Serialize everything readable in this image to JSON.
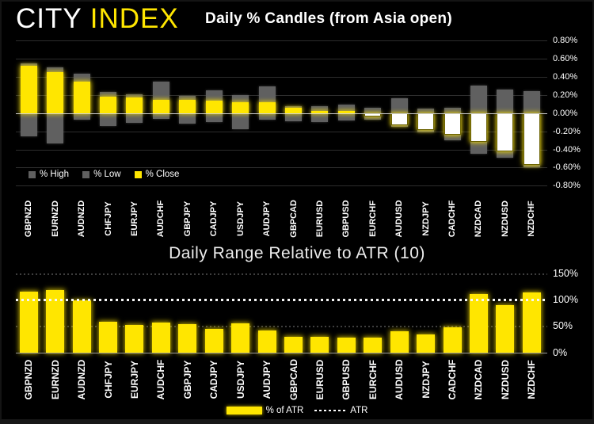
{
  "header": {
    "logo_city": "CITY",
    "logo_index": "INDEX"
  },
  "colors": {
    "background": "#000000",
    "brand_yellow": "#ffe600",
    "bar_gray": "#606060",
    "negative_close_fill": "#ffffff",
    "grid": "#2d2d2d",
    "zero_line": "#cfcfcf",
    "text": "#ffffff"
  },
  "chart_data": [
    {
      "type": "bar",
      "title": "Daily % Candles (from Asia open)",
      "categories": [
        "GBPNZD",
        "EURNZD",
        "AUDNZD",
        "CHFJPY",
        "EURJPY",
        "AUDCHF",
        "GBPJPY",
        "CADJPY",
        "USDJPY",
        "AUDJPY",
        "GBPCAD",
        "EURUSD",
        "GBPUSD",
        "EURCHF",
        "AUDUSD",
        "NZDJPY",
        "CADCHF",
        "NZDCAD",
        "NZDUSD",
        "NZDCHF"
      ],
      "series": [
        {
          "name": "% High",
          "color": "#606060",
          "values": [
            0.55,
            0.5,
            0.43,
            0.23,
            0.21,
            0.35,
            0.19,
            0.25,
            0.2,
            0.29,
            0.08,
            0.08,
            0.09,
            0.06,
            0.16,
            0.05,
            0.06,
            0.3,
            0.26,
            0.24
          ]
        },
        {
          "name": "% Low",
          "color": "#606060",
          "values": [
            -0.26,
            -0.33,
            -0.07,
            -0.14,
            -0.11,
            -0.06,
            -0.12,
            -0.1,
            -0.18,
            -0.07,
            -0.09,
            -0.1,
            -0.08,
            -0.07,
            -0.15,
            -0.21,
            -0.3,
            -0.45,
            -0.49,
            -0.6
          ]
        },
        {
          "name": "% Close",
          "color": "#ffe600",
          "values": [
            0.52,
            0.45,
            0.35,
            0.18,
            0.17,
            0.15,
            0.15,
            0.14,
            0.12,
            0.12,
            0.06,
            0.02,
            0.02,
            -0.04,
            -0.13,
            -0.19,
            -0.24,
            -0.32,
            -0.42,
            -0.57
          ]
        }
      ],
      "ylim": [
        -0.8,
        0.8
      ],
      "ytick_values": [
        0.8,
        0.6,
        0.4,
        0.2,
        0,
        -0.2,
        -0.4,
        -0.6,
        -0.8
      ],
      "yticklabels": [
        "0.80%",
        "0.60%",
        "0.40%",
        "0.20%",
        "0.00%",
        "-0.20%",
        "-0.40%",
        "-0.60%",
        "-0.80%"
      ],
      "grid": "on",
      "legend_position": "bottom-left",
      "axis_side": "right"
    },
    {
      "type": "bar",
      "title": "Daily Range Relative to ATR (10)",
      "categories": [
        "GBPNZD",
        "EURNZD",
        "AUDNZD",
        "CHFJPY",
        "EURJPY",
        "AUDCHF",
        "GBPJPY",
        "CADJPY",
        "USDJPY",
        "AUDJPY",
        "GBPCAD",
        "EURUSD",
        "GBPUSD",
        "EURCHF",
        "AUDUSD",
        "NZDJPY",
        "CADCHF",
        "NZDCAD",
        "NZDUSD",
        "NZDCHF"
      ],
      "series": [
        {
          "name": "% of ATR",
          "color": "#ffe600",
          "values": [
            115,
            118,
            98,
            58,
            52,
            56,
            54,
            44,
            55,
            42,
            30,
            29,
            28,
            28,
            40,
            34,
            48,
            110,
            89,
            113
          ]
        }
      ],
      "atr_line": {
        "label": "ATR",
        "value": 100,
        "style": "dotted"
      },
      "ylim": [
        0,
        150
      ],
      "ytick_values": [
        150,
        100,
        50,
        0
      ],
      "yticklabels": [
        "150%",
        "100%",
        "50%",
        "0%"
      ],
      "grid": "on",
      "legend_position": "bottom-center",
      "axis_side": "right"
    }
  ]
}
